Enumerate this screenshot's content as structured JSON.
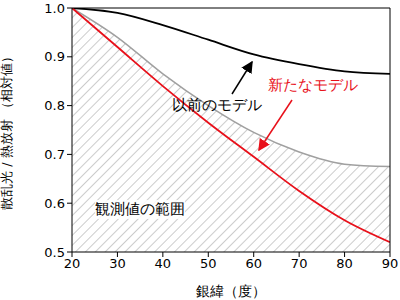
{
  "chart_data": {
    "type": "line",
    "x_label": "銀緯（度）",
    "y_label": "散乱光 / 熱放射 （相対値）",
    "x": [
      20,
      30,
      40,
      50,
      60,
      70,
      80,
      90
    ],
    "series": [
      {
        "name": "観測値の範囲",
        "type": "area",
        "color": "#a0a0a0",
        "values": [
          1.0,
          0.94,
          0.865,
          0.8,
          0.745,
          0.705,
          0.68,
          0.675
        ]
      },
      {
        "name": "以前のモデル",
        "type": "line",
        "color": "#000000",
        "values": [
          1.0,
          0.99,
          0.965,
          0.935,
          0.905,
          0.885,
          0.87,
          0.865
        ]
      },
      {
        "name": "新たなモデル",
        "type": "line",
        "color": "#e8101a",
        "values": [
          1.0,
          0.92,
          0.84,
          0.765,
          0.695,
          0.625,
          0.565,
          0.52
        ]
      }
    ],
    "xlim": [
      20,
      90
    ],
    "xticks": [
      20,
      30,
      40,
      50,
      60,
      70,
      80,
      90
    ],
    "ylim": [
      0.5,
      1
    ],
    "yticks": [
      0.5,
      0.6,
      0.7,
      0.8,
      0.9,
      {
        "value": 1,
        "label": "1.0"
      }
    ]
  }
}
